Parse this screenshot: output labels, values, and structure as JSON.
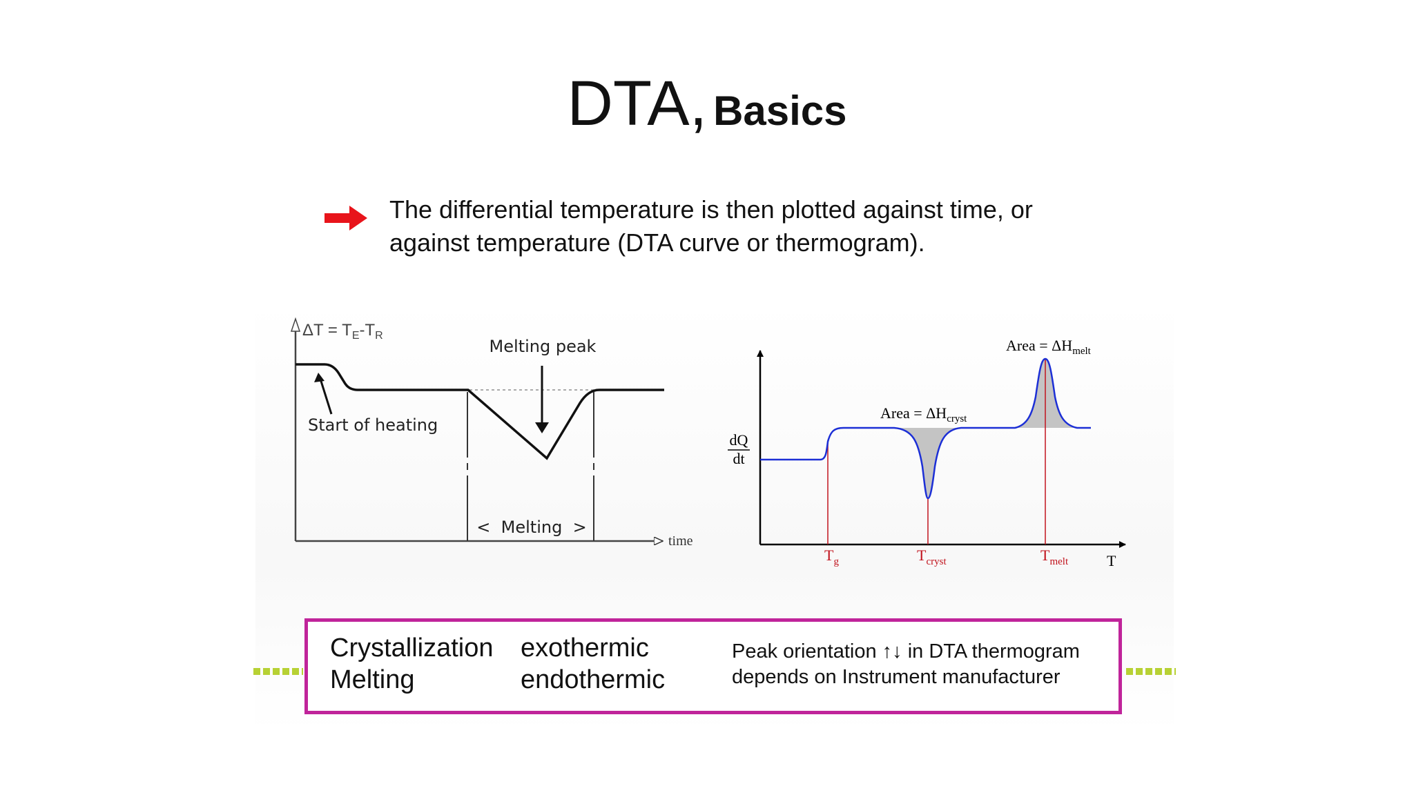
{
  "title": {
    "main": "DTA,",
    "sub": "Basics"
  },
  "bullet": {
    "icon": "red-arrow-icon",
    "color": "#e8141b",
    "line1": "The differential temperature is then plotted against time, or",
    "line2": "against temperature (DTA curve or thermogram)."
  },
  "left_diagram": {
    "y_label": "ΔT = T",
    "y_label_sub_e": "E",
    "y_label_dash": "-T",
    "y_label_sub_r": "R",
    "peak_label": "Melting peak",
    "start_label": "Start of heating",
    "melting_label": "<  Melting  >",
    "x_label": "time"
  },
  "right_diagram": {
    "y_label_num": "dQ",
    "y_label_den": "dt",
    "x_label": "T",
    "cryst_area_prefix": "Area = ΔH",
    "cryst_area_sub": "cryst",
    "melt_area_prefix": "Area = ΔH",
    "melt_area_sub": "melt",
    "tg_main": "T",
    "tg_sub": "g",
    "tcryst_main": "T",
    "tcryst_sub": "cryst",
    "tmelt_main": "T",
    "tmelt_sub": "melt",
    "curve_color": "#1c2fd6",
    "marker_color": "#c1121c",
    "fill_color": "#c4c4c4"
  },
  "summary": {
    "row1_process": "Crystallization",
    "row1_type": "exothermic",
    "row2_process": "Melting",
    "row2_type": "endothermic",
    "note_line1": "Peak orientation ↑↓ in DTA thermogram",
    "note_line2": "depends on Instrument manufacturer",
    "border_color": "#c0249a",
    "accent_color": "#b7d134"
  }
}
